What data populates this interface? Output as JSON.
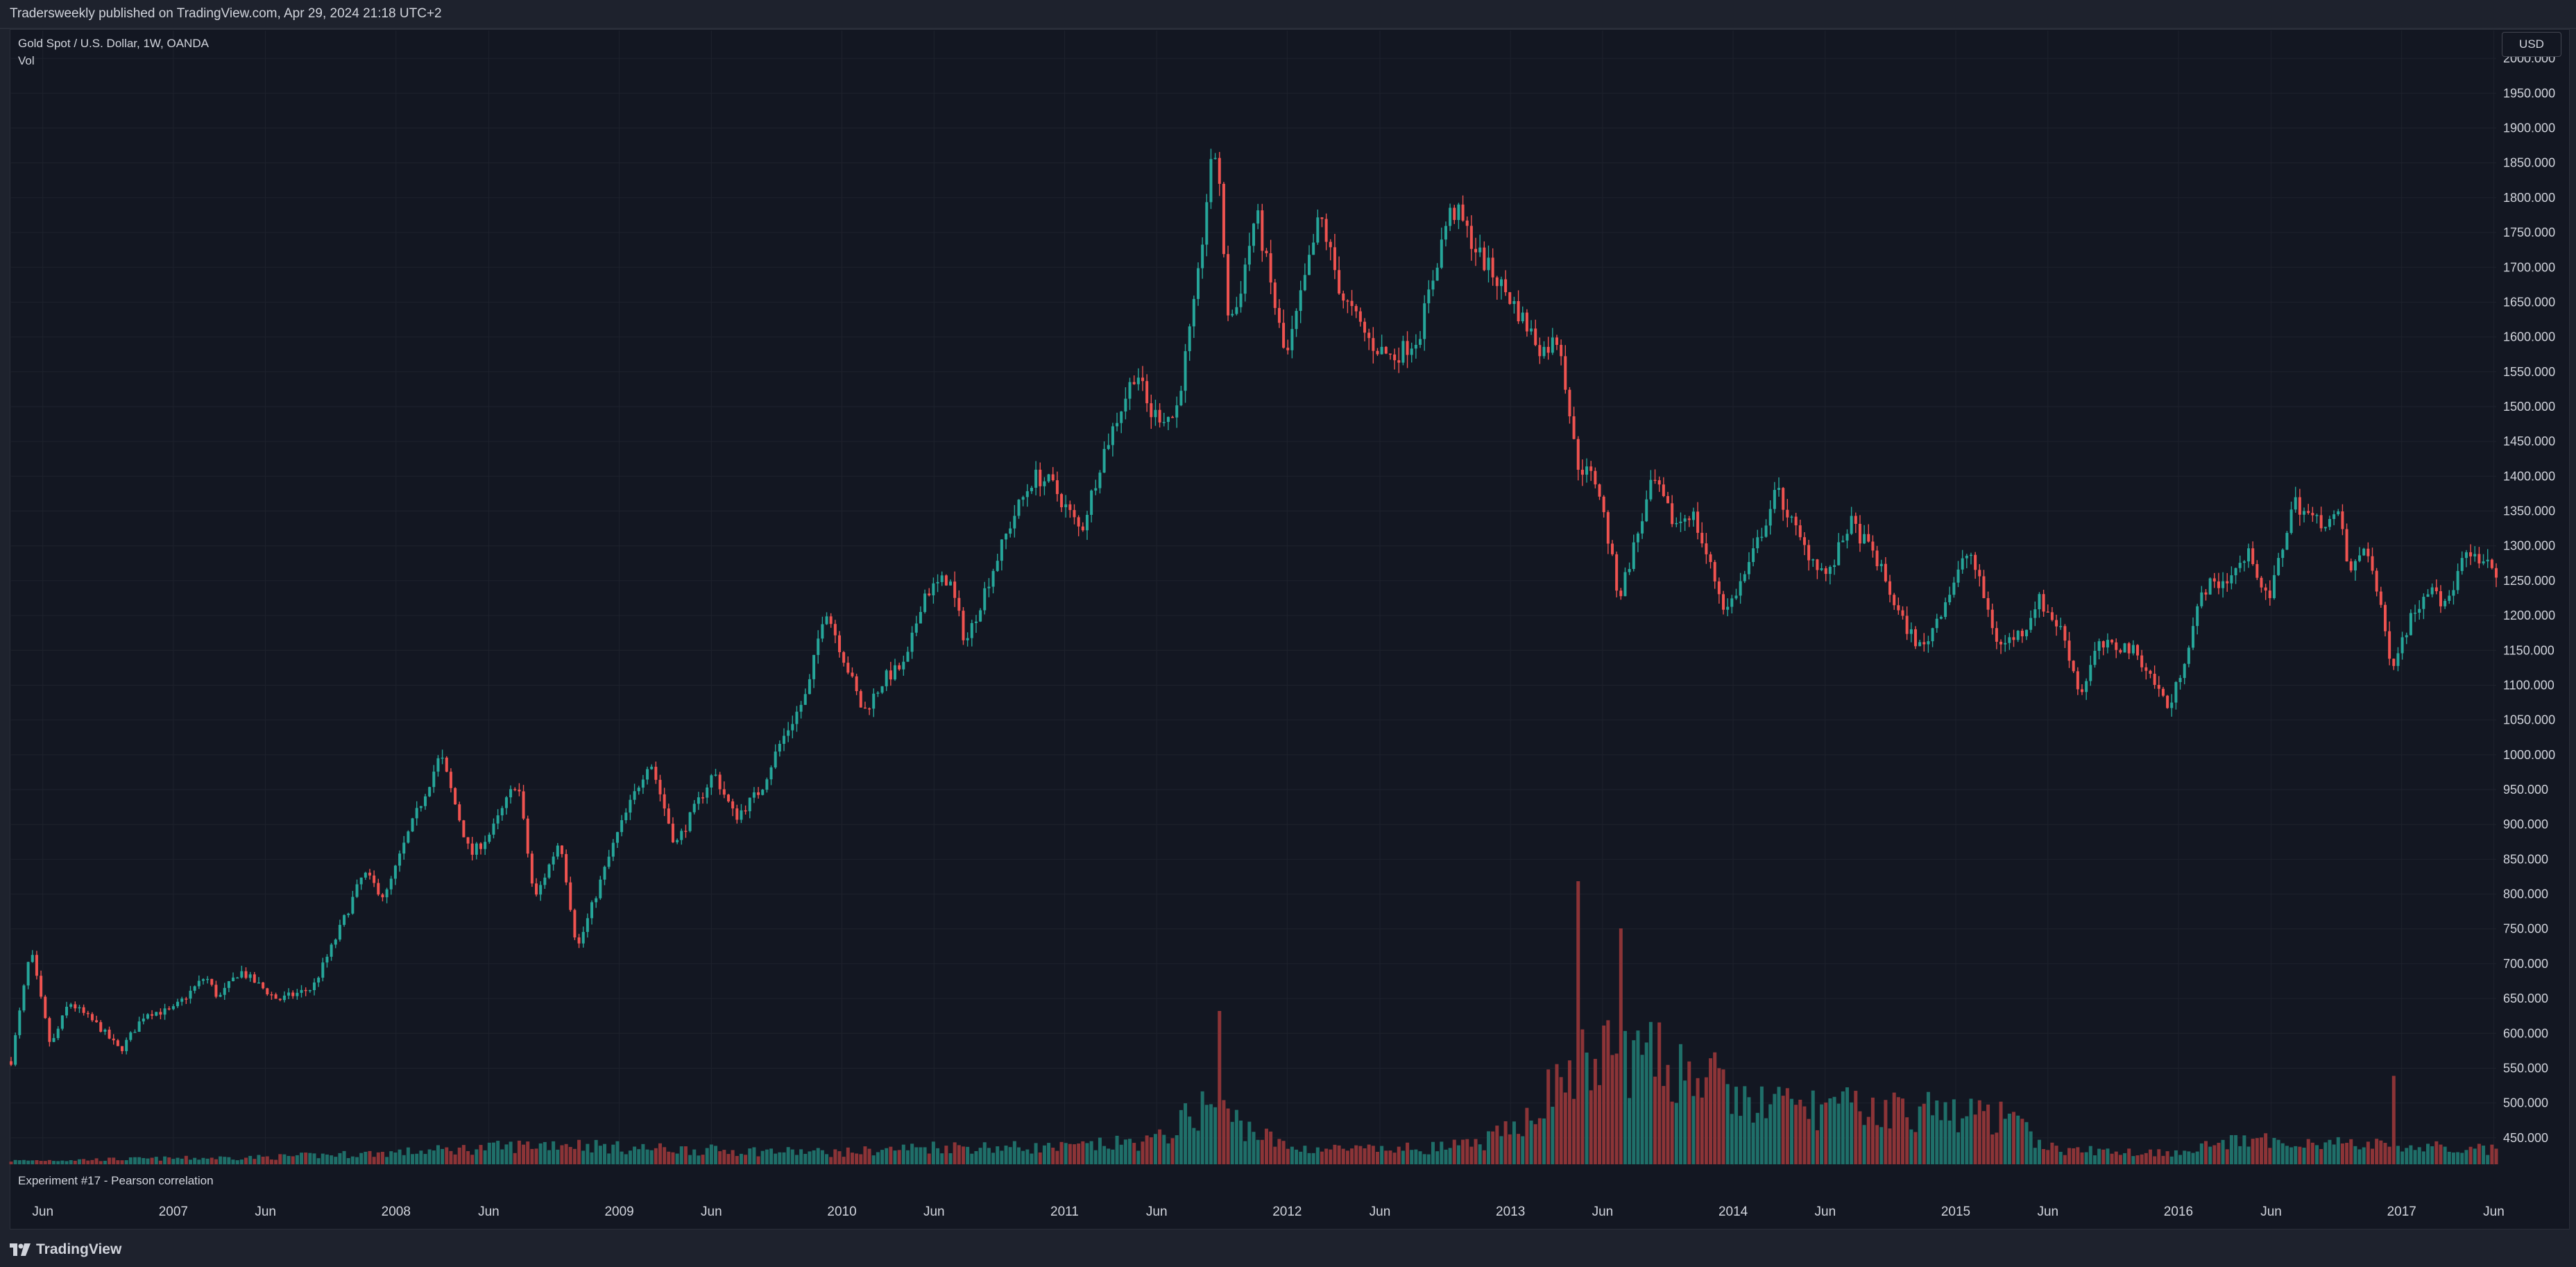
{
  "header": {
    "published_text": "Tradersweekly published on TradingView.com, Apr 29, 2024 21:18 UTC+2"
  },
  "chart": {
    "symbol_line": "Gold Spot / U.S. Dollar, 1W, OANDA",
    "volume_label": "Vol",
    "currency": "USD",
    "indicator_pane_label": "Experiment #17 - Pearson correlation"
  },
  "footer": {
    "brand": "TradingView"
  },
  "colors": {
    "up": "#26a69a",
    "down": "#ef5350",
    "volume_up": "#1f6f69",
    "volume_down": "#8c3437",
    "background": "#131722",
    "grid": "#1e222d",
    "text": "#d1d4dc"
  },
  "chart_data": {
    "type": "candlestick",
    "title": "Gold Spot / U.S. Dollar, 1W, OANDA",
    "price_axis": {
      "ticks": [
        450,
        500,
        550,
        600,
        650,
        700,
        750,
        800,
        850,
        900,
        950,
        1000,
        1050,
        1100,
        1150,
        1200,
        1250,
        1300,
        1350,
        1400,
        1450,
        1500,
        1550,
        1600,
        1650,
        1700,
        1750,
        1800,
        1850,
        1900,
        1950,
        2000
      ],
      "tick_labels": [
        "450.000",
        "500.000",
        "550.000",
        "600.000",
        "650.000",
        "700.000",
        "750.000",
        "800.000",
        "850.000",
        "900.000",
        "950.000",
        "1000.000",
        "1050.000",
        "1100.000",
        "1150.000",
        "1200.000",
        "1250.000",
        "1300.000",
        "1350.000",
        "1400.000",
        "1450.000",
        "1500.000",
        "1550.000",
        "1600.000",
        "1650.000",
        "1700.000",
        "1750.000",
        "1800.000",
        "1850.000",
        "1900.000",
        "1950.000",
        "2000.000"
      ],
      "range": [
        410,
        2040
      ]
    },
    "time_axis": {
      "range": [
        "2006-04-10",
        "2017-06-05"
      ],
      "ticks": [
        {
          "date": "2006-06-01",
          "label": "Jun"
        },
        {
          "date": "2007-01-01",
          "label": "2007"
        },
        {
          "date": "2007-06-01",
          "label": "Jun"
        },
        {
          "date": "2008-01-01",
          "label": "2008"
        },
        {
          "date": "2008-06-01",
          "label": "Jun"
        },
        {
          "date": "2009-01-01",
          "label": "2009"
        },
        {
          "date": "2009-06-01",
          "label": "Jun"
        },
        {
          "date": "2010-01-01",
          "label": "2010"
        },
        {
          "date": "2010-06-01",
          "label": "Jun"
        },
        {
          "date": "2011-01-01",
          "label": "2011"
        },
        {
          "date": "2011-06-01",
          "label": "Jun"
        },
        {
          "date": "2012-01-01",
          "label": "2012"
        },
        {
          "date": "2012-06-01",
          "label": "Jun"
        },
        {
          "date": "2013-01-01",
          "label": "2013"
        },
        {
          "date": "2013-06-01",
          "label": "Jun"
        },
        {
          "date": "2014-01-01",
          "label": "2014"
        },
        {
          "date": "2014-06-01",
          "label": "Jun"
        },
        {
          "date": "2015-01-01",
          "label": "2015"
        },
        {
          "date": "2015-06-01",
          "label": "Jun"
        },
        {
          "date": "2016-01-01",
          "label": "2016"
        },
        {
          "date": "2016-06-01",
          "label": "Jun"
        },
        {
          "date": "2017-01-01",
          "label": "2017"
        },
        {
          "date": "2017-06-01",
          "label": "Jun"
        }
      ]
    },
    "grid": true,
    "close_path": [
      [
        "2006-04-10",
        560
      ],
      [
        "2006-05-12",
        720
      ],
      [
        "2006-06-14",
        580
      ],
      [
        "2006-07-14",
        645
      ],
      [
        "2006-09-01",
        610
      ],
      [
        "2006-10-06",
        575
      ],
      [
        "2006-11-17",
        630
      ],
      [
        "2006-12-29",
        632
      ],
      [
        "2007-02-23",
        682
      ],
      [
        "2007-03-16",
        650
      ],
      [
        "2007-04-20",
        690
      ],
      [
        "2007-06-22",
        648
      ],
      [
        "2007-08-17",
        665
      ],
      [
        "2007-09-21",
        730
      ],
      [
        "2007-11-09",
        830
      ],
      [
        "2007-12-14",
        795
      ],
      [
        "2008-01-18",
        880
      ],
      [
        "2008-03-14",
        1000
      ],
      [
        "2008-05-02",
        855
      ],
      [
        "2008-06-06",
        890
      ],
      [
        "2008-07-18",
        965
      ],
      [
        "2008-08-15",
        790
      ],
      [
        "2008-09-26",
        880
      ],
      [
        "2008-10-24",
        720
      ],
      [
        "2008-11-28",
        810
      ],
      [
        "2008-12-26",
        880
      ],
      [
        "2009-02-20",
        995
      ],
      [
        "2009-04-03",
        870
      ],
      [
        "2009-06-05",
        975
      ],
      [
        "2009-07-10",
        910
      ],
      [
        "2009-08-21",
        950
      ],
      [
        "2009-09-18",
        1010
      ],
      [
        "2009-11-06",
        1090
      ],
      [
        "2009-12-04",
        1215
      ],
      [
        "2010-01-08",
        1130
      ],
      [
        "2010-02-05",
        1060
      ],
      [
        "2010-03-12",
        1110
      ],
      [
        "2010-04-16",
        1130
      ],
      [
        "2010-05-14",
        1230
      ],
      [
        "2010-06-25",
        1255
      ],
      [
        "2010-07-23",
        1160
      ],
      [
        "2010-08-27",
        1245
      ],
      [
        "2010-10-08",
        1340
      ],
      [
        "2010-11-12",
        1400
      ],
      [
        "2010-12-10",
        1390
      ],
      [
        "2011-01-28",
        1320
      ],
      [
        "2011-03-04",
        1430
      ],
      [
        "2011-04-29",
        1555
      ],
      [
        "2011-05-20",
        1490
      ],
      [
        "2011-07-01",
        1485
      ],
      [
        "2011-08-05",
        1660
      ],
      [
        "2011-08-26",
        1830
      ],
      [
        "2011-09-09",
        1875
      ],
      [
        "2011-09-23",
        1640
      ],
      [
        "2011-10-07",
        1630
      ],
      [
        "2011-11-11",
        1780
      ],
      [
        "2011-12-30",
        1565
      ],
      [
        "2012-02-24",
        1775
      ],
      [
        "2012-03-30",
        1660
      ],
      [
        "2012-05-18",
        1590
      ],
      [
        "2012-06-22",
        1570
      ],
      [
        "2012-08-03",
        1600
      ],
      [
        "2012-09-21",
        1775
      ],
      [
        "2012-10-05",
        1780
      ],
      [
        "2012-11-09",
        1720
      ],
      [
        "2012-12-28",
        1660
      ],
      [
        "2013-02-22",
        1580
      ],
      [
        "2013-03-22",
        1600
      ],
      [
        "2013-04-19",
        1420
      ],
      [
        "2013-05-24",
        1390
      ],
      [
        "2013-06-28",
        1225
      ],
      [
        "2013-08-23",
        1395
      ],
      [
        "2013-09-27",
        1330
      ],
      [
        "2013-10-25",
        1350
      ],
      [
        "2013-12-20",
        1205
      ],
      [
        "2014-01-24",
        1265
      ],
      [
        "2014-03-14",
        1380
      ],
      [
        "2014-04-25",
        1300
      ],
      [
        "2014-06-06",
        1255
      ],
      [
        "2014-07-11",
        1335
      ],
      [
        "2014-08-22",
        1285
      ],
      [
        "2014-10-03",
        1195
      ],
      [
        "2014-11-07",
        1150
      ],
      [
        "2014-11-28",
        1190
      ],
      [
        "2015-01-23",
        1295
      ],
      [
        "2015-03-13",
        1155
      ],
      [
        "2015-04-24",
        1180
      ],
      [
        "2015-05-15",
        1225
      ],
      [
        "2015-06-26",
        1175
      ],
      [
        "2015-07-24",
        1085
      ],
      [
        "2015-08-21",
        1155
      ],
      [
        "2015-10-09",
        1155
      ],
      [
        "2015-10-30",
        1140
      ],
      [
        "2015-12-18",
        1065
      ],
      [
        "2016-02-12",
        1240
      ],
      [
        "2016-03-18",
        1250
      ],
      [
        "2016-04-29",
        1290
      ],
      [
        "2016-05-27",
        1215
      ],
      [
        "2016-07-08",
        1365
      ],
      [
        "2016-08-12",
        1335
      ],
      [
        "2016-09-23",
        1340
      ],
      [
        "2016-10-07",
        1255
      ],
      [
        "2016-11-04",
        1305
      ],
      [
        "2016-12-16",
        1130
      ],
      [
        "2017-01-20",
        1205
      ],
      [
        "2017-02-24",
        1255
      ],
      [
        "2017-03-10",
        1205
      ],
      [
        "2017-04-14",
        1285
      ],
      [
        "2017-06-05",
        1265
      ]
    ],
    "volume_path": [
      [
        "2006-04-10",
        3
      ],
      [
        "2007-01-01",
        5
      ],
      [
        "2007-06-01",
        6
      ],
      [
        "2008-01-01",
        10
      ],
      [
        "2008-06-01",
        14
      ],
      [
        "2008-10-01",
        18
      ],
      [
        "2009-01-01",
        14
      ],
      [
        "2009-06-01",
        12
      ],
      [
        "2010-01-01",
        10
      ],
      [
        "2010-06-01",
        15
      ],
      [
        "2011-01-01",
        14
      ],
      [
        "2011-06-01",
        20
      ],
      [
        "2011-08-26",
        52
      ],
      [
        "2011-10-15",
        35
      ],
      [
        "2012-01-01",
        14
      ],
      [
        "2012-06-01",
        12
      ],
      [
        "2012-11-01",
        16
      ],
      [
        "2013-01-01",
        28
      ],
      [
        "2013-04-12",
        80
      ],
      [
        "2013-06-21",
        95
      ],
      [
        "2013-09-15",
        85
      ],
      [
        "2013-11-15",
        75
      ],
      [
        "2014-01-15",
        52
      ],
      [
        "2014-05-15",
        48
      ],
      [
        "2014-11-15",
        45
      ],
      [
        "2015-03-15",
        40
      ],
      [
        "2015-06-15",
        12
      ],
      [
        "2015-12-15",
        10
      ],
      [
        "2016-03-15",
        18
      ],
      [
        "2016-07-15",
        20
      ],
      [
        "2016-11-15",
        16
      ],
      [
        "2017-06-05",
        12
      ]
    ],
    "volume_spikes": [
      [
        "2011-09-09",
        130
      ],
      [
        "2013-04-19",
        240
      ],
      [
        "2013-06-28",
        200
      ],
      [
        "2016-12-16",
        75
      ]
    ]
  }
}
